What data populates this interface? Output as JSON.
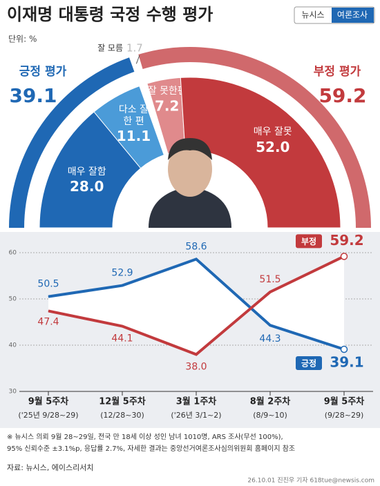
{
  "header": {
    "title": "이재명 대통령 국정 수행 평가",
    "brand": "뉴시스",
    "brand_section": "여론조사",
    "unit": "단위: %"
  },
  "chart_data": [
    {
      "type": "donut",
      "categories": [
        "매우 잘함",
        "다소 잘한 편",
        "잘 모름",
        "잘 못한편",
        "매우 잘못"
      ],
      "values": [
        28.0,
        11.1,
        1.7,
        7.2,
        52.0
      ],
      "value_labels": [
        "28.0",
        "11.1",
        "1.7",
        "7.2",
        "52.0"
      ],
      "colors": [
        "#1f68b4",
        "#4b9bd8",
        "#bbbbbb",
        "#e08a8c",
        "#c23a3d"
      ],
      "groups": [
        {
          "name": "긍정 평가",
          "value": 39.1,
          "color": "#1f68b4"
        },
        {
          "name": "부정 평가",
          "value": 59.2,
          "color": "#d0696c"
        }
      ]
    },
    {
      "type": "line",
      "categories": [
        "9월 5주차",
        "12월 5주차",
        "3월 1주차",
        "8월 2주차",
        "9월 5주차"
      ],
      "subcategories": [
        "('25년 9/28~29)",
        "(12/28~30)",
        "('26년 3/1~2)",
        "(8/9~10)",
        "(9/28~29)"
      ],
      "series": [
        {
          "name": "긍정",
          "color": "#1f68b4",
          "values": [
            50.5,
            52.9,
            58.6,
            44.3,
            39.1
          ],
          "value_labels": [
            "50.5",
            "52.9",
            "58.6",
            "44.3",
            "39.1"
          ]
        },
        {
          "name": "부정",
          "color": "#c23a3d",
          "values": [
            47.4,
            44.1,
            38.0,
            51.5,
            59.2
          ],
          "value_labels": [
            "47.4",
            "44.1",
            "38.0",
            "51.5",
            "59.2"
          ]
        }
      ],
      "ylim": [
        30,
        60
      ],
      "yticks": [
        30,
        40,
        50,
        60
      ],
      "grid": true
    }
  ],
  "footer": {
    "note_1": "※ 뉴시스 의뢰 9월 28~29일, 전국 만 18세 이상 성인 남녀 1010명, ARS 조사(무선 100%),",
    "note_2": "95% 신뢰수준 ±3.1%p, 응답률 2.7%, 자세한 결과는 중앙선거여론조사심의위원회 홈페이지 참조",
    "source": "자료: 뉴시스, 에이스리서치",
    "credit": "26.10.01 진진우 기자 618tue@newsis.com"
  }
}
